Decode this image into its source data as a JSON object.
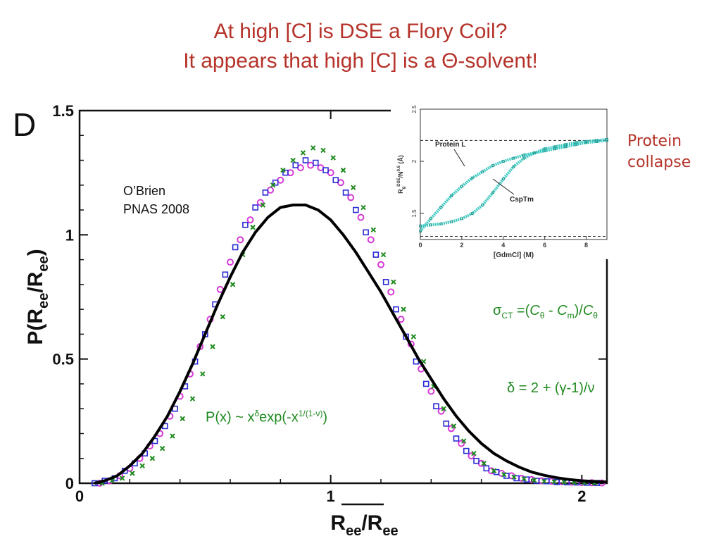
{
  "title_line1": "At high [C] is DSE a Flory Coil?",
  "title_line2": "It appears that high [C] is a Θ-solvent!",
  "panel_letter": "D",
  "citation": {
    "line1": "O’Brien",
    "line2": "PNAS 2008"
  },
  "annotations": {
    "collapse_line1": "Protein",
    "collapse_line2": "collapse",
    "sigma": {
      "lhs": "σ",
      "lhs_sub": "CT",
      "mid1": " =(",
      "c1": "C",
      "c1_sub": "θ",
      "mid2": " - ",
      "c2": "C",
      "c2_sub": "m",
      "mid3": ")/",
      "c3": "C",
      "c3_sub": "θ"
    },
    "delta": "δ = 2 + (γ-1)/ν",
    "formula": {
      "a": "P(x) ~ x",
      "a_sup": "δ",
      "b": "exp(-x",
      "b_sup": "1/(1-ν)",
      "c": ")"
    }
  },
  "colors": {
    "title": "#b5332a",
    "green": "#1f8a1f",
    "magenta": "#d63ad6",
    "blue": "#2a2ad4",
    "cyan": "#3ec9c0"
  },
  "chart_data": [
    {
      "type": "scatter",
      "xlabel": "R_ee/⟨R_ee⟩",
      "ylabel": "P(R_ee/⟨R_ee⟩)",
      "xlim": [
        0,
        2.1
      ],
      "ylim": [
        0,
        1.5
      ],
      "xticks": [
        "0",
        "1",
        "2"
      ],
      "yticks": [
        "0",
        "0.5",
        "1",
        "1.5"
      ],
      "series": [
        {
          "marker": "circle",
          "color": "#d63ad6",
          "x": [
            0.08,
            0.12,
            0.16,
            0.2,
            0.24,
            0.28,
            0.32,
            0.36,
            0.4,
            0.44,
            0.48,
            0.52,
            0.56,
            0.6,
            0.64,
            0.68,
            0.72,
            0.76,
            0.8,
            0.84,
            0.88,
            0.92,
            0.96,
            1.0,
            1.04,
            1.08,
            1.12,
            1.16,
            1.2,
            1.24,
            1.28,
            1.32,
            1.36,
            1.4,
            1.44,
            1.48,
            1.52,
            1.56,
            1.6,
            1.64,
            1.68,
            1.72,
            1.76,
            1.8,
            1.84,
            1.88,
            1.92,
            1.96,
            2.0,
            2.04,
            2.08
          ],
          "y": [
            0.0,
            0.01,
            0.03,
            0.06,
            0.1,
            0.15,
            0.2,
            0.27,
            0.35,
            0.44,
            0.55,
            0.66,
            0.78,
            0.89,
            0.98,
            1.06,
            1.13,
            1.18,
            1.22,
            1.25,
            1.27,
            1.28,
            1.27,
            1.25,
            1.21,
            1.15,
            1.07,
            0.98,
            0.88,
            0.77,
            0.66,
            0.56,
            0.46,
            0.37,
            0.29,
            0.22,
            0.16,
            0.11,
            0.08,
            0.05,
            0.04,
            0.03,
            0.02,
            0.015,
            0.01,
            0.008,
            0.006,
            0.004,
            0.003,
            0.002,
            0.001
          ]
        },
        {
          "marker": "square",
          "color": "#2a2ad4",
          "x": [
            0.06,
            0.1,
            0.14,
            0.18,
            0.22,
            0.26,
            0.3,
            0.34,
            0.38,
            0.42,
            0.46,
            0.5,
            0.54,
            0.58,
            0.62,
            0.66,
            0.7,
            0.74,
            0.78,
            0.82,
            0.86,
            0.9,
            0.94,
            0.98,
            1.02,
            1.06,
            1.1,
            1.14,
            1.18,
            1.22,
            1.26,
            1.3,
            1.34,
            1.38,
            1.42,
            1.46,
            1.5,
            1.54,
            1.58,
            1.62,
            1.66,
            1.7,
            1.74,
            1.78,
            1.82,
            1.86,
            1.9,
            1.94,
            1.98,
            2.02,
            2.06
          ],
          "y": [
            0.0,
            0.01,
            0.02,
            0.05,
            0.08,
            0.12,
            0.17,
            0.23,
            0.3,
            0.39,
            0.49,
            0.6,
            0.72,
            0.84,
            0.95,
            1.04,
            1.11,
            1.17,
            1.21,
            1.25,
            1.28,
            1.3,
            1.29,
            1.26,
            1.22,
            1.17,
            1.1,
            1.01,
            0.92,
            0.81,
            0.7,
            0.59,
            0.49,
            0.4,
            0.31,
            0.24,
            0.18,
            0.13,
            0.09,
            0.06,
            0.045,
            0.03,
            0.02,
            0.015,
            0.01,
            0.008,
            0.005,
            0.004,
            0.003,
            0.002,
            0.001
          ]
        },
        {
          "marker": "x",
          "color": "#1f8a1f",
          "x": [
            0.09,
            0.13,
            0.17,
            0.21,
            0.25,
            0.29,
            0.33,
            0.37,
            0.41,
            0.45,
            0.49,
            0.53,
            0.57,
            0.61,
            0.65,
            0.69,
            0.73,
            0.77,
            0.81,
            0.85,
            0.89,
            0.93,
            0.97,
            1.01,
            1.05,
            1.09,
            1.13,
            1.17,
            1.21,
            1.25,
            1.29,
            1.33,
            1.37,
            1.41,
            1.45,
            1.49,
            1.53,
            1.57,
            1.61,
            1.65,
            1.69,
            1.73,
            1.77,
            1.81,
            1.85,
            1.89,
            1.93,
            1.97,
            2.01,
            2.05
          ],
          "y": [
            0.0,
            0.01,
            0.02,
            0.04,
            0.07,
            0.1,
            0.14,
            0.19,
            0.26,
            0.34,
            0.44,
            0.55,
            0.67,
            0.8,
            0.92,
            1.03,
            1.12,
            1.2,
            1.26,
            1.3,
            1.33,
            1.35,
            1.34,
            1.31,
            1.26,
            1.19,
            1.11,
            1.02,
            0.92,
            0.81,
            0.7,
            0.59,
            0.49,
            0.39,
            0.3,
            0.23,
            0.17,
            0.12,
            0.08,
            0.05,
            0.035,
            0.025,
            0.018,
            0.012,
            0.008,
            0.006,
            0.004,
            0.003,
            0.002,
            0.001
          ]
        },
        {
          "marker": "line",
          "color": "#000000",
          "x": [
            0.06,
            0.1,
            0.15,
            0.2,
            0.25,
            0.3,
            0.35,
            0.4,
            0.45,
            0.5,
            0.55,
            0.6,
            0.65,
            0.7,
            0.75,
            0.8,
            0.85,
            0.9,
            0.95,
            1.0,
            1.05,
            1.1,
            1.15,
            1.2,
            1.25,
            1.3,
            1.35,
            1.4,
            1.45,
            1.5,
            1.55,
            1.6,
            1.65,
            1.7,
            1.75,
            1.8,
            1.85,
            1.9,
            1.95,
            2.0,
            2.05,
            2.1
          ],
          "y": [
            0.0,
            0.01,
            0.03,
            0.07,
            0.12,
            0.19,
            0.27,
            0.37,
            0.48,
            0.6,
            0.72,
            0.83,
            0.93,
            1.01,
            1.07,
            1.11,
            1.12,
            1.12,
            1.1,
            1.06,
            1.0,
            0.93,
            0.85,
            0.77,
            0.68,
            0.59,
            0.5,
            0.42,
            0.34,
            0.27,
            0.21,
            0.16,
            0.12,
            0.09,
            0.065,
            0.045,
            0.032,
            0.022,
            0.015,
            0.01,
            0.007,
            0.005
          ]
        }
      ]
    },
    {
      "type": "line",
      "xlabel": "[GdmCl] (M)",
      "ylabel": "R_g^DSE/N^0.6 (Å)",
      "xlim": [
        0,
        9
      ],
      "ylim": [
        1.25,
        2.5
      ],
      "xticks": [
        "0",
        "2",
        "4",
        "6",
        "8"
      ],
      "yticks": [
        "1.5",
        "2",
        "2.5"
      ],
      "reference_lines": [
        2.2,
        1.28
      ],
      "series": [
        {
          "name": "Protein L",
          "color": "#3ec9c0",
          "x": [
            0,
            0.5,
            1,
            1.5,
            2,
            2.5,
            3,
            3.5,
            4,
            4.5,
            5,
            5.5,
            6,
            6.5,
            7,
            7.5,
            8,
            8.5,
            9
          ],
          "y": [
            1.33,
            1.45,
            1.56,
            1.67,
            1.76,
            1.84,
            1.9,
            1.96,
            2.0,
            2.03,
            2.06,
            2.08,
            2.1,
            2.12,
            2.14,
            2.16,
            2.18,
            2.19,
            2.2
          ]
        },
        {
          "name": "CspTm",
          "color": "#3ec9c0",
          "x": [
            0,
            0.5,
            1,
            1.5,
            2,
            2.5,
            3,
            3.5,
            4,
            4.5,
            5,
            5.5,
            6,
            6.5,
            7,
            7.5,
            8,
            8.5,
            9
          ],
          "y": [
            1.38,
            1.39,
            1.4,
            1.42,
            1.45,
            1.5,
            1.58,
            1.7,
            1.83,
            1.95,
            2.03,
            2.08,
            2.12,
            2.14,
            2.16,
            2.18,
            2.19,
            2.2,
            2.21
          ]
        }
      ]
    }
  ]
}
